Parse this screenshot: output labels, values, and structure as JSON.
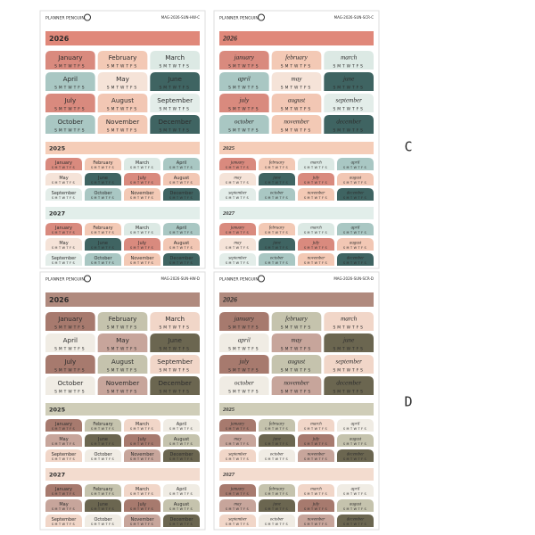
{
  "labels": [
    "C",
    "D"
  ],
  "sheets": [
    {
      "brand": "PLANNER PENGUIN",
      "code": "MAG-2026-SUN-HW-C",
      "weekdays": "SMTWTFS",
      "colors": [
        "#d98a7e",
        "#f3c9b5",
        "#dce9e4",
        "#a9c7c3",
        "#f5e3d8",
        "#3f6462",
        "#d98a7e",
        "#f2c7b4",
        "#e3ede9",
        "#a9c7c3",
        "#f3c9b5",
        "#3f6462"
      ],
      "sections": [
        {
          "year": "2026",
          "color": "#e0887a",
          "months": [
            "January",
            "February",
            "March",
            "April",
            "May",
            "June",
            "July",
            "August",
            "September",
            "October",
            "November",
            "December"
          ]
        },
        {
          "year": "2025",
          "color": "#f5cdb8",
          "months": [
            "January",
            "February",
            "March",
            "April",
            "May",
            "June",
            "July",
            "August",
            "September",
            "October",
            "November",
            "December"
          ]
        },
        {
          "year": "2027",
          "color": "#e2eeea",
          "months": [
            "January",
            "February",
            "March",
            "April",
            "May",
            "June",
            "July",
            "August",
            "September",
            "October",
            "November",
            "December"
          ]
        }
      ]
    },
    {
      "brand": "PLANNER PENGUIN",
      "code": "MAG-2026-SUN-SCR-C",
      "weekdays": "SMTWTFS",
      "colors": [
        "#d98a7e",
        "#f3c9b5",
        "#dce9e4",
        "#a9c7c3",
        "#f5e3d8",
        "#3f6462",
        "#d98a7e",
        "#f2c7b4",
        "#e3ede9",
        "#a9c7c3",
        "#f3c9b5",
        "#3f6462"
      ],
      "sections": [
        {
          "year": "2026",
          "color": "#e0887a",
          "months": [
            "january",
            "february",
            "march",
            "april",
            "may",
            "june",
            "july",
            "august",
            "september",
            "october",
            "november",
            "december"
          ]
        },
        {
          "year": "2025",
          "color": "#f5cdb8",
          "months": [
            "january",
            "february",
            "march",
            "april",
            "may",
            "june",
            "july",
            "august",
            "september",
            "october",
            "november",
            "december"
          ]
        },
        {
          "year": "2027",
          "color": "#e2eeea",
          "months": [
            "january",
            "february",
            "march",
            "april",
            "may",
            "june",
            "july",
            "august",
            "september",
            "october",
            "november",
            "december"
          ]
        }
      ]
    },
    {
      "brand": "PLANNER PENGUIN",
      "code": "MAG-2026-SUN-HW-D",
      "weekdays": "SMTWTFS",
      "colors": [
        "#a77a6e",
        "#c5c3ad",
        "#f1d6c8",
        "#f0ece4",
        "#c7a59b",
        "#6b6650",
        "#a77a6e",
        "#c5c3ad",
        "#f1d6c8",
        "#f0ece4",
        "#c7a59b",
        "#6b6650"
      ],
      "sections": [
        {
          "year": "2026",
          "color": "#b08a7e",
          "months": [
            "January",
            "February",
            "March",
            "April",
            "May",
            "June",
            "July",
            "August",
            "September",
            "October",
            "November",
            "December"
          ]
        },
        {
          "year": "2025",
          "color": "#cfcdb8",
          "months": [
            "January",
            "February",
            "March",
            "April",
            "May",
            "June",
            "July",
            "August",
            "September",
            "October",
            "November",
            "December"
          ]
        },
        {
          "year": "2027",
          "color": "#f3dccf",
          "months": [
            "January",
            "February",
            "March",
            "April",
            "May",
            "June",
            "July",
            "August",
            "September",
            "October",
            "November",
            "December"
          ]
        }
      ]
    },
    {
      "brand": "PLANNER PENGUIN",
      "code": "MAG-2026-SUN-SCR-D",
      "weekdays": "SMTWTFS",
      "colors": [
        "#a77a6e",
        "#c5c3ad",
        "#f1d6c8",
        "#f0ece4",
        "#c7a59b",
        "#6b6650",
        "#a77a6e",
        "#c5c3ad",
        "#f1d6c8",
        "#f0ece4",
        "#c7a59b",
        "#6b6650"
      ],
      "sections": [
        {
          "year": "2026",
          "color": "#b08a7e",
          "months": [
            "january",
            "february",
            "march",
            "april",
            "may",
            "june",
            "july",
            "august",
            "september",
            "october",
            "november",
            "december"
          ]
        },
        {
          "year": "2025",
          "color": "#cfcdb8",
          "months": [
            "january",
            "february",
            "march",
            "april",
            "may",
            "june",
            "july",
            "august",
            "september",
            "october",
            "november",
            "december"
          ]
        },
        {
          "year": "2027",
          "color": "#f3dccf",
          "months": [
            "january",
            "february",
            "march",
            "april",
            "may",
            "june",
            "july",
            "august",
            "september",
            "october",
            "november",
            "december"
          ]
        }
      ]
    }
  ]
}
